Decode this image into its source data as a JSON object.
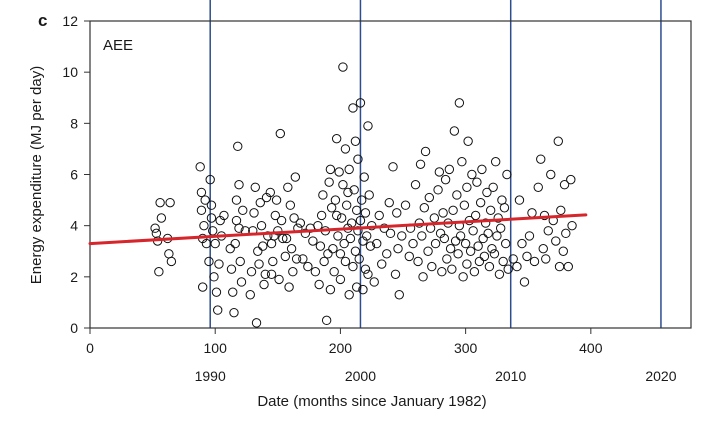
{
  "chart_data": {
    "type": "scatter",
    "panel_label": "c",
    "inset_label": "AEE",
    "xlabel": "Date (months since January 1982)",
    "ylabel": "Energy expenditure (MJ per day)",
    "xlim": [
      0,
      480
    ],
    "ylim": [
      0,
      12
    ],
    "x_ticks": [
      "0",
      "100",
      "200",
      "300",
      "400"
    ],
    "y_ticks": [
      "0",
      "2",
      "4",
      "6",
      "8",
      "10",
      "12"
    ],
    "secondary_x_ticks": [
      "1990",
      "2000",
      "2010",
      "2020"
    ],
    "trend_line": {
      "x": [
        0,
        396
      ],
      "y": [
        3.3,
        4.42
      ],
      "color": "#d7262b"
    },
    "reference_line_color": "#2e4d8f",
    "series": [
      {
        "marker": "open-circle",
        "points": [
          [
            52,
            3.9
          ],
          [
            53,
            3.7
          ],
          [
            54,
            3.4
          ],
          [
            55,
            2.2
          ],
          [
            56,
            4.9
          ],
          [
            57,
            4.3
          ],
          [
            62,
            3.5
          ],
          [
            63,
            2.9
          ],
          [
            64,
            4.9
          ],
          [
            65,
            2.6
          ],
          [
            88,
            6.3
          ],
          [
            89,
            5.3
          ],
          [
            89,
            4.6
          ],
          [
            90,
            3.5
          ],
          [
            90,
            1.6
          ],
          [
            91,
            4.0
          ],
          [
            92,
            5.0
          ],
          [
            93,
            3.3
          ],
          [
            95,
            2.6
          ],
          [
            96,
            5.8
          ],
          [
            97,
            4.8
          ],
          [
            97,
            4.3
          ],
          [
            98,
            3.8
          ],
          [
            99,
            2.0
          ],
          [
            100,
            3.3
          ],
          [
            101,
            1.4
          ],
          [
            102,
            0.7
          ],
          [
            103,
            2.5
          ],
          [
            104,
            4.2
          ],
          [
            105,
            3.6
          ],
          [
            107,
            4.4
          ],
          [
            112,
            3.1
          ],
          [
            113,
            2.3
          ],
          [
            114,
            1.4
          ],
          [
            115,
            0.6
          ],
          [
            116,
            3.3
          ],
          [
            117,
            4.2
          ],
          [
            117,
            5.0
          ],
          [
            118,
            7.1
          ],
          [
            119,
            3.9
          ],
          [
            119,
            5.6
          ],
          [
            120,
            2.6
          ],
          [
            121,
            1.8
          ],
          [
            122,
            4.6
          ],
          [
            124,
            3.8
          ],
          [
            128,
            1.3
          ],
          [
            129,
            2.2
          ],
          [
            130,
            3.8
          ],
          [
            131,
            4.5
          ],
          [
            132,
            5.5
          ],
          [
            133,
            0.2
          ],
          [
            134,
            3.0
          ],
          [
            135,
            2.5
          ],
          [
            136,
            4.9
          ],
          [
            137,
            4.0
          ],
          [
            138,
            3.2
          ],
          [
            139,
            1.7
          ],
          [
            140,
            2.1
          ],
          [
            141,
            5.1
          ],
          [
            142,
            3.6
          ],
          [
            144,
            5.3
          ],
          [
            145,
            3.3
          ],
          [
            145,
            2.1
          ],
          [
            146,
            2.6
          ],
          [
            147,
            3.6
          ],
          [
            148,
            4.4
          ],
          [
            149,
            5.0
          ],
          [
            150,
            3.8
          ],
          [
            151,
            1.9
          ],
          [
            152,
            7.6
          ],
          [
            153,
            4.2
          ],
          [
            154,
            3.5
          ],
          [
            156,
            2.8
          ],
          [
            157,
            3.5
          ],
          [
            158,
            5.5
          ],
          [
            159,
            1.6
          ],
          [
            160,
            4.8
          ],
          [
            161,
            3.1
          ],
          [
            162,
            2.2
          ],
          [
            163,
            4.3
          ],
          [
            164,
            5.9
          ],
          [
            165,
            2.7
          ],
          [
            166,
            3.9
          ],
          [
            168,
            4.1
          ],
          [
            170,
            2.7
          ],
          [
            172,
            3.7
          ],
          [
            174,
            2.4
          ],
          [
            176,
            3.9
          ],
          [
            178,
            3.4
          ],
          [
            180,
            2.2
          ],
          [
            182,
            4.0
          ],
          [
            183,
            1.7
          ],
          [
            184,
            3.2
          ],
          [
            185,
            4.4
          ],
          [
            186,
            5.2
          ],
          [
            187,
            2.6
          ],
          [
            188,
            3.8
          ],
          [
            189,
            0.3
          ],
          [
            190,
            2.9
          ],
          [
            191,
            5.7
          ],
          [
            192,
            6.2
          ],
          [
            192,
            1.5
          ],
          [
            193,
            4.7
          ],
          [
            194,
            3.1
          ],
          [
            195,
            2.2
          ],
          [
            196,
            5.0
          ],
          [
            197,
            7.4
          ],
          [
            197,
            4.4
          ],
          [
            198,
            3.6
          ],
          [
            199,
            6.1
          ],
          [
            200,
            2.9
          ],
          [
            200,
            1.9
          ],
          [
            201,
            4.3
          ],
          [
            202,
            5.6
          ],
          [
            202,
            10.2
          ],
          [
            203,
            3.3
          ],
          [
            204,
            7.0
          ],
          [
            204,
            2.6
          ],
          [
            205,
            4.8
          ],
          [
            206,
            3.9
          ],
          [
            206,
            5.3
          ],
          [
            207,
            6.2
          ],
          [
            207,
            1.3
          ],
          [
            208,
            3.5
          ],
          [
            209,
            4.1
          ],
          [
            210,
            8.6
          ],
          [
            210,
            2.4
          ],
          [
            211,
            5.4
          ],
          [
            212,
            3.0
          ],
          [
            212,
            7.3
          ],
          [
            213,
            4.6
          ],
          [
            213,
            1.6
          ],
          [
            214,
            3.8
          ],
          [
            214,
            6.6
          ],
          [
            215,
            2.7
          ],
          [
            216,
            8.8
          ],
          [
            216,
            4.2
          ],
          [
            217,
            5.0
          ],
          [
            218,
            3.4
          ],
          [
            218,
            1.5
          ],
          [
            219,
            5.9
          ],
          [
            220,
            2.3
          ],
          [
            220,
            4.5
          ],
          [
            221,
            3.6
          ],
          [
            222,
            7.9
          ],
          [
            222,
            2.1
          ],
          [
            223,
            5.2
          ],
          [
            224,
            3.2
          ],
          [
            225,
            4.0
          ],
          [
            227,
            1.8
          ],
          [
            229,
            3.3
          ],
          [
            231,
            4.4
          ],
          [
            233,
            2.5
          ],
          [
            235,
            3.9
          ],
          [
            237,
            2.9
          ],
          [
            239,
            4.9
          ],
          [
            240,
            3.7
          ],
          [
            242,
            6.3
          ],
          [
            244,
            2.1
          ],
          [
            245,
            4.5
          ],
          [
            246,
            3.1
          ],
          [
            247,
            1.3
          ],
          [
            249,
            3.6
          ],
          [
            252,
            4.8
          ],
          [
            255,
            2.8
          ],
          [
            256,
            3.9
          ],
          [
            258,
            3.3
          ],
          [
            260,
            5.6
          ],
          [
            262,
            2.6
          ],
          [
            263,
            4.1
          ],
          [
            264,
            6.4
          ],
          [
            265,
            3.6
          ],
          [
            266,
            2.0
          ],
          [
            267,
            4.7
          ],
          [
            268,
            6.9
          ],
          [
            270,
            3.0
          ],
          [
            271,
            5.1
          ],
          [
            272,
            3.9
          ],
          [
            273,
            2.4
          ],
          [
            275,
            4.3
          ],
          [
            276,
            3.3
          ],
          [
            278,
            5.4
          ],
          [
            279,
            6.1
          ],
          [
            280,
            3.7
          ],
          [
            281,
            2.2
          ],
          [
            282,
            4.5
          ],
          [
            283,
            3.5
          ],
          [
            284,
            5.8
          ],
          [
            285,
            2.7
          ],
          [
            286,
            4.1
          ],
          [
            287,
            6.2
          ],
          [
            288,
            3.1
          ],
          [
            289,
            2.3
          ],
          [
            290,
            4.6
          ],
          [
            291,
            7.7
          ],
          [
            292,
            3.4
          ],
          [
            293,
            5.2
          ],
          [
            294,
            2.9
          ],
          [
            295,
            8.8
          ],
          [
            295,
            4.0
          ],
          [
            296,
            3.6
          ],
          [
            297,
            6.5
          ],
          [
            298,
            2.0
          ],
          [
            299,
            4.8
          ],
          [
            300,
            3.3
          ],
          [
            301,
            5.5
          ],
          [
            301,
            2.5
          ],
          [
            302,
            7.3
          ],
          [
            303,
            4.2
          ],
          [
            304,
            3.0
          ],
          [
            305,
            6.0
          ],
          [
            306,
            3.8
          ],
          [
            307,
            2.2
          ],
          [
            308,
            4.4
          ],
          [
            309,
            5.7
          ],
          [
            310,
            3.2
          ],
          [
            311,
            2.6
          ],
          [
            312,
            4.9
          ],
          [
            313,
            6.2
          ],
          [
            314,
            3.5
          ],
          [
            315,
            2.8
          ],
          [
            316,
            4.1
          ],
          [
            317,
            5.3
          ],
          [
            318,
            3.7
          ],
          [
            319,
            2.4
          ],
          [
            320,
            4.6
          ],
          [
            321,
            3.1
          ],
          [
            322,
            5.5
          ],
          [
            323,
            2.9
          ],
          [
            324,
            6.5
          ],
          [
            325,
            3.6
          ],
          [
            326,
            4.3
          ],
          [
            327,
            2.1
          ],
          [
            328,
            3.9
          ],
          [
            329,
            5.0
          ],
          [
            330,
            2.6
          ],
          [
            331,
            4.7
          ],
          [
            332,
            3.3
          ],
          [
            333,
            6.0
          ],
          [
            334,
            2.3
          ],
          [
            338,
            2.7
          ],
          [
            341,
            2.4
          ],
          [
            343,
            5.0
          ],
          [
            345,
            3.3
          ],
          [
            347,
            1.8
          ],
          [
            349,
            2.8
          ],
          [
            351,
            3.6
          ],
          [
            353,
            4.5
          ],
          [
            355,
            2.6
          ],
          [
            358,
            5.5
          ],
          [
            360,
            6.6
          ],
          [
            362,
            3.1
          ],
          [
            363,
            4.4
          ],
          [
            364,
            2.7
          ],
          [
            366,
            3.8
          ],
          [
            368,
            6.0
          ],
          [
            370,
            4.2
          ],
          [
            372,
            3.4
          ],
          [
            374,
            7.3
          ],
          [
            375,
            2.4
          ],
          [
            376,
            4.6
          ],
          [
            378,
            3.0
          ],
          [
            379,
            5.6
          ],
          [
            380,
            3.7
          ],
          [
            382,
            2.4
          ],
          [
            384,
            5.8
          ],
          [
            385,
            4.0
          ]
        ]
      }
    ]
  }
}
